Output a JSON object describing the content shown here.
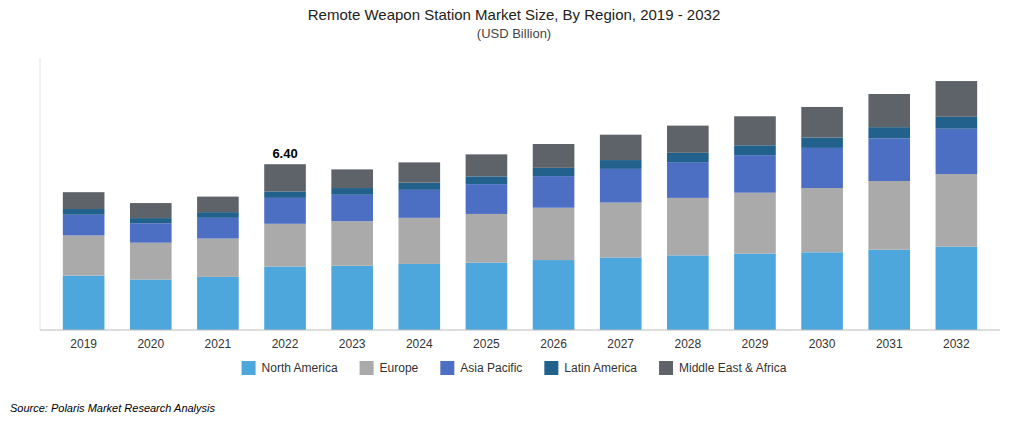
{
  "chart_data": {
    "type": "bar",
    "stacked": true,
    "title": "Remote Weapon Station Market Size, By Region, 2019 - 2032",
    "subtitle": "(USD Billion)",
    "source": "Source: Polaris Market Research Analysis",
    "categories": [
      "2019",
      "2020",
      "2021",
      "2022",
      "2023",
      "2024",
      "2025",
      "2026",
      "2027",
      "2028",
      "2029",
      "2030",
      "2031",
      "2032"
    ],
    "series": [
      {
        "name": "North America",
        "color": "#4DA6DC",
        "values": [
          2.1,
          1.95,
          2.05,
          2.45,
          2.48,
          2.55,
          2.6,
          2.7,
          2.8,
          2.88,
          2.95,
          3.0,
          3.1,
          3.22
        ]
      },
      {
        "name": "Europe",
        "color": "#AAAAAA",
        "values": [
          1.55,
          1.42,
          1.48,
          1.65,
          1.72,
          1.78,
          1.88,
          2.02,
          2.12,
          2.22,
          2.35,
          2.48,
          2.65,
          2.8
        ]
      },
      {
        "name": "Asia Pacific",
        "color": "#4C6FC4",
        "values": [
          0.8,
          0.75,
          0.8,
          1.0,
          1.02,
          1.08,
          1.15,
          1.22,
          1.3,
          1.38,
          1.45,
          1.55,
          1.65,
          1.75
        ]
      },
      {
        "name": "Latin America",
        "color": "#21618C",
        "values": [
          0.22,
          0.2,
          0.22,
          0.25,
          0.26,
          0.28,
          0.3,
          0.32,
          0.34,
          0.36,
          0.38,
          0.4,
          0.43,
          0.46
        ]
      },
      {
        "name": "Middle East & Africa",
        "color": "#5D6368",
        "values": [
          0.65,
          0.58,
          0.6,
          1.05,
          0.72,
          0.78,
          0.85,
          0.92,
          0.98,
          1.05,
          1.12,
          1.18,
          1.28,
          1.38
        ]
      }
    ],
    "annotations": [
      {
        "text": "6.40",
        "x": "2022",
        "y": 6.4
      }
    ],
    "ylim": [
      0,
      10.5
    ],
    "tick_labels": "x",
    "grid": false,
    "legend": "bottom"
  }
}
